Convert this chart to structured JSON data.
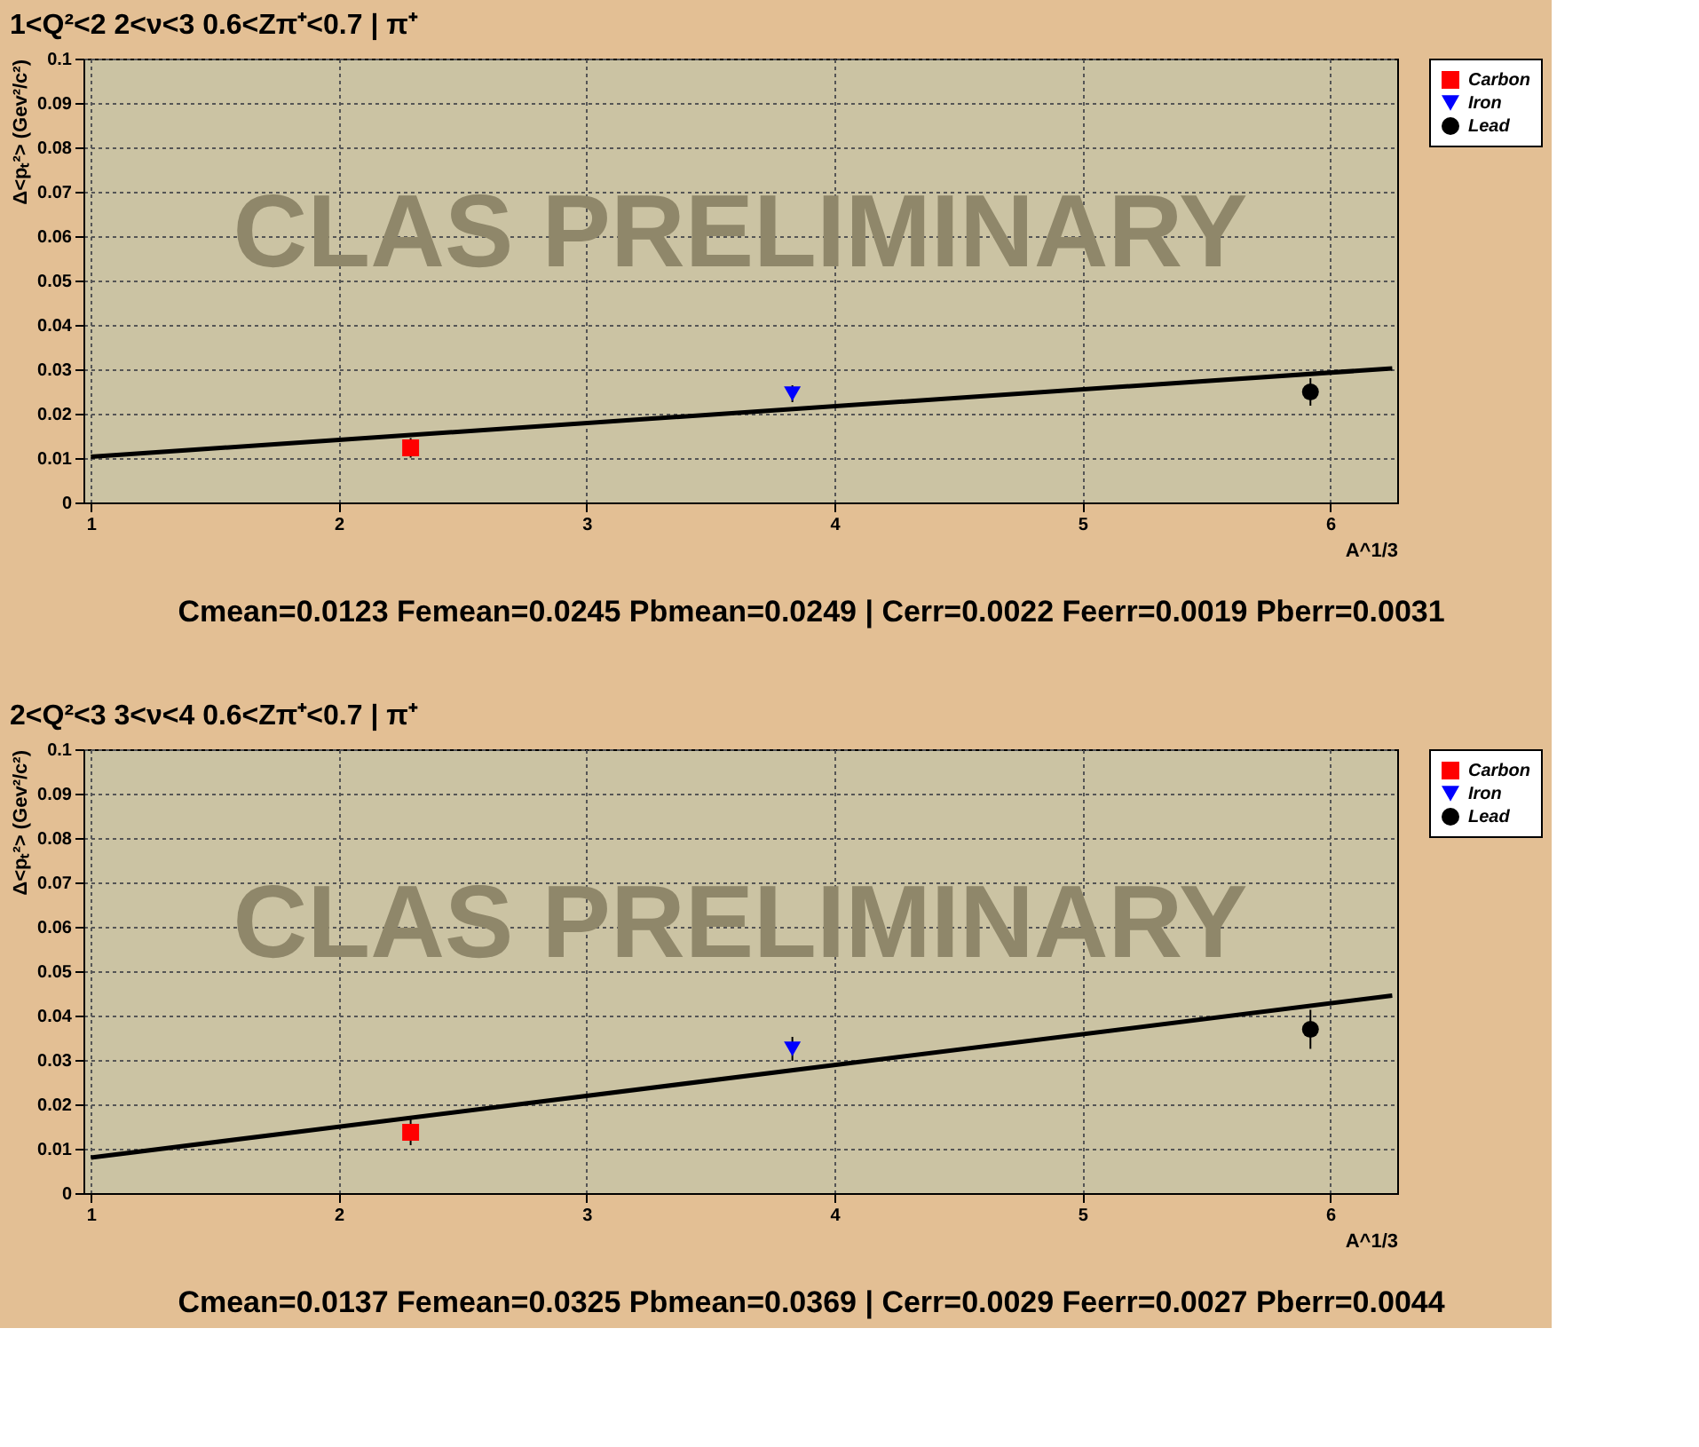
{
  "chart_data": [
    {
      "type": "scatter",
      "title": "1<Q²<2 2<ν<3 0.6<Zπ⁺<0.7 | π⁺",
      "xlabel": "A^1/3",
      "ylabel": "Δ<pₜ²> (Gev²/c²)",
      "xlim": [
        0.97,
        6.27
      ],
      "xticks": [
        1,
        2,
        3,
        4,
        5,
        6
      ],
      "ylim": [
        0,
        0.1
      ],
      "yticks": [
        0,
        0.01,
        0.02,
        0.03,
        0.04,
        0.05,
        0.06,
        0.07,
        0.08,
        0.09,
        0.1
      ],
      "grid": true,
      "legend": "top right",
      "series": [
        {
          "name": "Carbon",
          "color": "#ff0000",
          "marker": "square",
          "x": [
            2.29
          ],
          "values": [
            0.0123
          ],
          "errors": [
            0.0022
          ]
        },
        {
          "name": "Iron",
          "color": "#0000ff",
          "marker": "triangle",
          "x": [
            3.83
          ],
          "values": [
            0.0245
          ],
          "errors": [
            0.0019
          ]
        },
        {
          "name": "Lead",
          "color": "#000000",
          "marker": "circle",
          "x": [
            5.92
          ],
          "values": [
            0.0249
          ],
          "errors": [
            0.0031
          ]
        },
        {
          "type": "line",
          "color": "#000000",
          "marker": "none",
          "x": [
            1,
            6.25
          ],
          "values": [
            0.0103,
            0.0302
          ]
        }
      ],
      "annotations": [
        "CLAS PRELIMINARY",
        "Cmean=0.0123 Femean=0.0245 Pbmean=0.0249 | Cerr=0.0022 Feerr=0.0019 Pberr=0.0031"
      ]
    },
    {
      "type": "scatter",
      "title": "2<Q²<3 3<ν<4 0.6<Zπ⁺<0.7 | π⁺",
      "xlabel": "A^1/3",
      "ylabel": "Δ<pₜ²> (Gev²/c²)",
      "xlim": [
        0.97,
        6.27
      ],
      "xticks": [
        1,
        2,
        3,
        4,
        5,
        6
      ],
      "ylim": [
        0,
        0.1
      ],
      "yticks": [
        0,
        0.01,
        0.02,
        0.03,
        0.04,
        0.05,
        0.06,
        0.07,
        0.08,
        0.09,
        0.1
      ],
      "grid": true,
      "legend": "top right",
      "series": [
        {
          "name": "Carbon",
          "color": "#ff0000",
          "marker": "square",
          "x": [
            2.29
          ],
          "values": [
            0.0137
          ],
          "errors": [
            0.0029
          ]
        },
        {
          "name": "Iron",
          "color": "#0000ff",
          "marker": "triangle",
          "x": [
            3.83
          ],
          "values": [
            0.0325
          ],
          "errors": [
            0.0027
          ]
        },
        {
          "name": "Lead",
          "color": "#000000",
          "marker": "circle",
          "x": [
            5.92
          ],
          "values": [
            0.0369
          ],
          "errors": [
            0.0044
          ]
        },
        {
          "type": "line",
          "color": "#000000",
          "marker": "none",
          "x": [
            1,
            6.25
          ],
          "values": [
            0.008,
            0.0445
          ]
        }
      ],
      "annotations": [
        "CLAS PRELIMINARY",
        "Cmean=0.0137 Femean=0.0325 Pbmean=0.0369 | Cerr=0.0029 Feerr=0.0027 Pberr=0.0044"
      ]
    }
  ]
}
